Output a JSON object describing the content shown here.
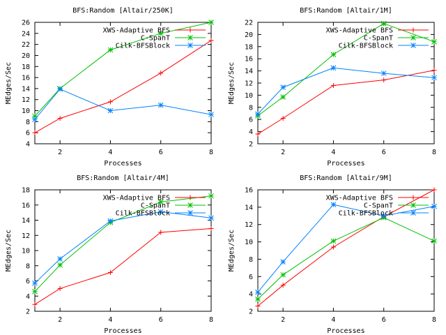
{
  "chart_data": [
    {
      "type": "line",
      "title": "BFS:Random [Altair/250K]",
      "xlabel": "Processes",
      "ylabel": "MEdges/Sec",
      "xlim": [
        1,
        8
      ],
      "ylim": [
        4,
        26
      ],
      "xticks": [
        2,
        4,
        6,
        8
      ],
      "yticks": [
        4,
        6,
        8,
        10,
        12,
        14,
        16,
        18,
        20,
        22,
        24,
        26
      ],
      "x": [
        1,
        2,
        4,
        6,
        8
      ],
      "series": [
        {
          "name": "XWS-Adaptive BFS",
          "color": "#ff0000",
          "values": [
            6.0,
            8.6,
            11.6,
            16.8,
            22.7
          ]
        },
        {
          "name": "C-SpanT",
          "color": "#00c000",
          "values": [
            9.0,
            14.0,
            21.0,
            24.0,
            26.0
          ]
        },
        {
          "name": "Cilk-BFSBlock",
          "color": "#0080ff",
          "values": [
            8.4,
            13.9,
            10.0,
            11.0,
            9.3
          ]
        }
      ],
      "legend": "top-right",
      "grid": false
    },
    {
      "type": "line",
      "title": "BFS:Random [Altair/1M]",
      "xlabel": "Processes",
      "ylabel": "MEdges/Sec",
      "xlim": [
        1,
        8
      ],
      "ylim": [
        2,
        22
      ],
      "xticks": [
        2,
        4,
        6,
        8
      ],
      "yticks": [
        2,
        4,
        6,
        8,
        10,
        12,
        14,
        16,
        18,
        20,
        22
      ],
      "x": [
        1,
        2,
        4,
        6,
        8
      ],
      "series": [
        {
          "name": "XWS-Adaptive BFS",
          "color": "#ff0000",
          "values": [
            3.6,
            6.2,
            11.6,
            12.5,
            14.1
          ]
        },
        {
          "name": "C-SpanT",
          "color": "#00c000",
          "values": [
            6.6,
            9.7,
            16.7,
            21.8,
            18.8
          ]
        },
        {
          "name": "Cilk-BFSBlock",
          "color": "#0080ff",
          "values": [
            6.9,
            11.3,
            14.5,
            13.6,
            12.9
          ]
        }
      ],
      "legend": "top-right",
      "grid": false
    },
    {
      "type": "line",
      "title": "BFS:Random [Altair/4M]",
      "xlabel": "Processes",
      "ylabel": "MEdges/Sec",
      "xlim": [
        1,
        8
      ],
      "ylim": [
        2,
        18
      ],
      "xticks": [
        2,
        4,
        6,
        8
      ],
      "yticks": [
        2,
        4,
        6,
        8,
        10,
        12,
        14,
        16,
        18
      ],
      "x": [
        1,
        2,
        4,
        6,
        8
      ],
      "series": [
        {
          "name": "XWS-Adaptive BFS",
          "color": "#ff0000",
          "values": [
            2.9,
            5.0,
            7.1,
            12.4,
            12.9
          ]
        },
        {
          "name": "C-SpanT",
          "color": "#00c000",
          "values": [
            4.6,
            8.1,
            13.7,
            16.4,
            17.2
          ]
        },
        {
          "name": "Cilk-BFSBlock",
          "color": "#0080ff",
          "values": [
            5.7,
            8.9,
            13.9,
            15.1,
            14.3
          ]
        }
      ],
      "legend": "top-right",
      "grid": false
    },
    {
      "type": "line",
      "title": "BFS:Random [Altair/9M]",
      "xlabel": "Processes",
      "ylabel": "MEdges/Sec",
      "xlim": [
        1,
        8
      ],
      "ylim": [
        2,
        16
      ],
      "xticks": [
        2,
        4,
        6,
        8
      ],
      "yticks": [
        2,
        4,
        6,
        8,
        10,
        12,
        14,
        16
      ],
      "x": [
        1,
        2,
        4,
        6,
        8
      ],
      "series": [
        {
          "name": "XWS-Adaptive BFS",
          "color": "#ff0000",
          "values": [
            2.6,
            5.0,
            9.4,
            12.9,
            16.0
          ]
        },
        {
          "name": "C-SpanT",
          "color": "#00c000",
          "values": [
            3.4,
            6.2,
            10.1,
            12.8,
            10.1
          ]
        },
        {
          "name": "Cilk-BFSBlock",
          "color": "#0080ff",
          "values": [
            4.2,
            7.7,
            14.3,
            13.0,
            14.1
          ]
        }
      ],
      "legend": "top-right",
      "grid": false
    }
  ]
}
